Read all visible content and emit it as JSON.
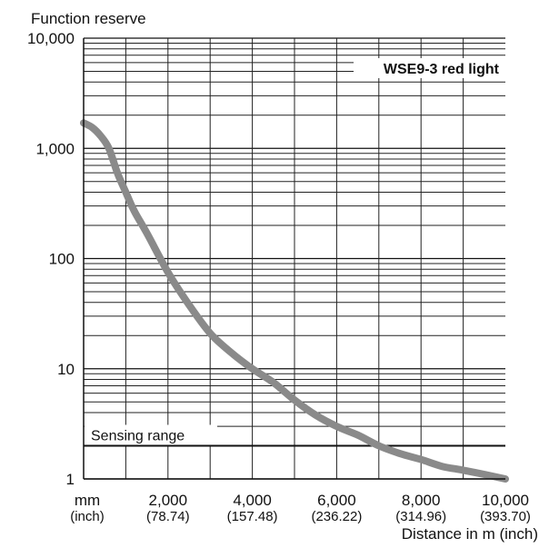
{
  "chart_data": {
    "type": "line",
    "title": "WSE9-3 red light",
    "ylabel": "Function reserve",
    "xlabel": "Distance in m (inch)",
    "x_unit_label": "mm",
    "x_unit_sublabel": "(inch)",
    "xlim": [
      0,
      10000
    ],
    "ylim": [
      1,
      10000
    ],
    "y_scale": "log",
    "grid": true,
    "x_ticks": [
      {
        "value": 2000,
        "label": "2,000",
        "sublabel": "(78.74)"
      },
      {
        "value": 4000,
        "label": "4,000",
        "sublabel": "(157.48)"
      },
      {
        "value": 6000,
        "label": "6,000",
        "sublabel": "(236.22)"
      },
      {
        "value": 8000,
        "label": "8,000",
        "sublabel": "(314.96)"
      },
      {
        "value": 10000,
        "label": "10,000",
        "sublabel": "(393.70)"
      }
    ],
    "y_ticks": [
      {
        "value": 1,
        "label": "1"
      },
      {
        "value": 10,
        "label": "10"
      },
      {
        "value": 100,
        "label": "100"
      },
      {
        "value": 1000,
        "label": "1,000"
      },
      {
        "value": 10000,
        "label": "10,000"
      }
    ],
    "annotations": [
      {
        "text": "Sensing range",
        "y": 2
      }
    ],
    "series": [
      {
        "x": [
          0,
          200,
          400,
          600,
          800,
          1000,
          1200,
          1500,
          2000,
          2500,
          3000,
          3500,
          4000,
          4500,
          5000,
          5500,
          6000,
          6500,
          7000,
          7500,
          8000,
          8500,
          9000,
          9500,
          10000
        ],
        "y": [
          1700,
          1550,
          1300,
          1000,
          600,
          400,
          270,
          170,
          75,
          38,
          21,
          14,
          10,
          7.5,
          5.2,
          3.8,
          3,
          2.5,
          2,
          1.7,
          1.5,
          1.3,
          1.2,
          1.1,
          1.0
        ],
        "color": "#8a8a8a"
      }
    ]
  }
}
